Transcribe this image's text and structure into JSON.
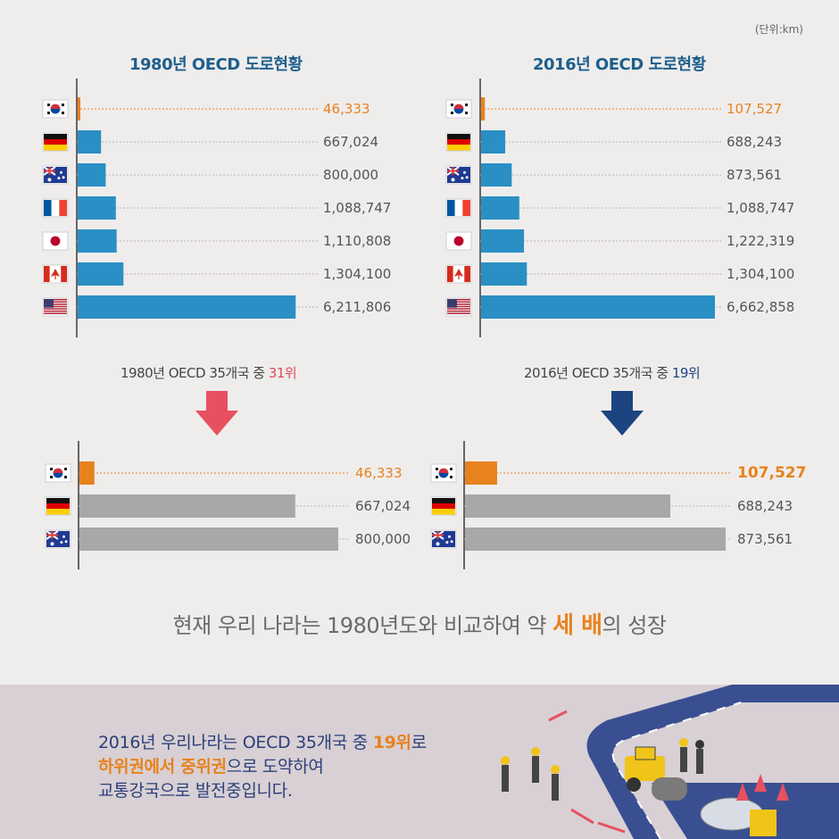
{
  "unit_label": "(단위:km)",
  "colors": {
    "korea": "#e8821e",
    "bar_blue": "#2a8fc4",
    "bar_gray": "#a9a8a9",
    "axis": "#666666",
    "title": "#1e5f8c",
    "arrow_red": "#e8505f",
    "arrow_blue": "#1c4480"
  },
  "chart_data": [
    {
      "type": "bar",
      "orientation": "horizontal",
      "title": "1980년 OECD 도로현황",
      "categories": [
        "KR",
        "DE",
        "AU",
        "FR",
        "JP",
        "CA",
        "US"
      ],
      "values": [
        46333,
        667024,
        800000,
        1088747,
        1110808,
        1304100,
        6211806
      ],
      "labels": [
        "46,333",
        "667,024",
        "800,000",
        "1,088,747",
        "1,110,808",
        "1,304,100",
        "6,211,806"
      ]
    },
    {
      "type": "bar",
      "orientation": "horizontal",
      "title": "2016년 OECD 도로현황",
      "categories": [
        "KR",
        "DE",
        "AU",
        "FR",
        "JP",
        "CA",
        "US"
      ],
      "values": [
        107527,
        688243,
        873561,
        1088747,
        1222319,
        1304100,
        6662858
      ],
      "labels": [
        "107,527",
        "688,243",
        "873,561",
        "1,088,747",
        "1,222,319",
        "1,304,100",
        "6,662,858"
      ]
    },
    {
      "type": "bar",
      "orientation": "horizontal",
      "categories": [
        "KR",
        "DE",
        "AU"
      ],
      "values": [
        46333,
        667024,
        800000
      ],
      "labels": [
        "46,333",
        "667,024",
        "800,000"
      ]
    },
    {
      "type": "bar",
      "orientation": "horizontal",
      "categories": [
        "KR",
        "DE",
        "AU"
      ],
      "values": [
        107527,
        688243,
        873561
      ],
      "labels": [
        "107,527",
        "688,243",
        "873,561"
      ]
    }
  ],
  "rank_1980": {
    "prefix": "1980년 OECD 35개국 중 ",
    "rank": "31위"
  },
  "rank_2016": {
    "prefix": "2016년 OECD 35개국 중 ",
    "rank": "19위"
  },
  "summary": {
    "before": "현재 우리 나라는 1980년도와 비교하여 약 ",
    "em": "세 배",
    "after": "의 성장"
  },
  "footer": {
    "line1_before": "2016년 우리나라는 OECD 35개국 중 ",
    "line1_em": "19위",
    "line1_after": "로",
    "line2_em": "하위권에서 중위권",
    "line2_after": "으로 도약하여",
    "line3": "교통강국으로 발전중입니다."
  }
}
